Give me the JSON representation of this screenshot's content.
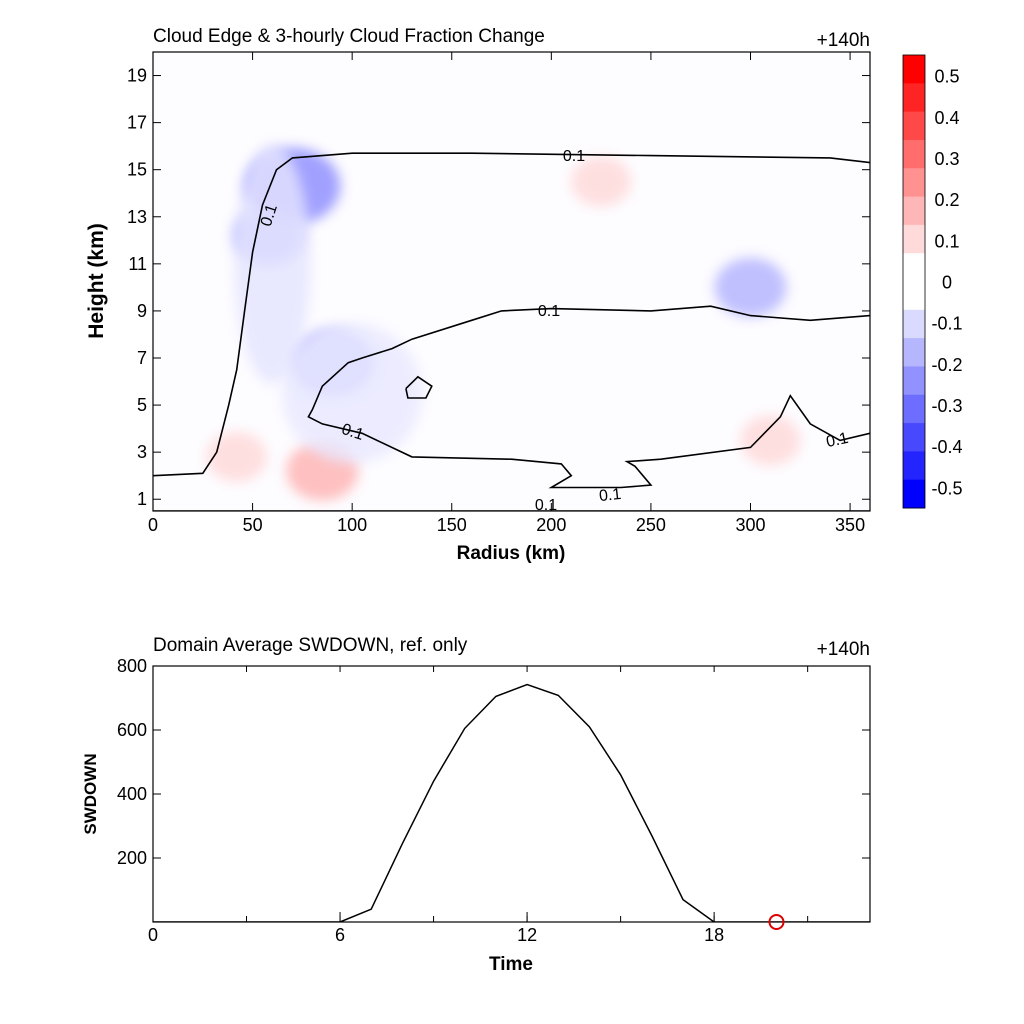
{
  "chart_data": [
    {
      "type": "heatmap",
      "title": "Cloud Edge & 3-hourly Cloud Fraction Change",
      "annotation": "+140h",
      "xlabel": "Radius (km)",
      "ylabel": "Height (km)",
      "xlim": [
        0,
        360
      ],
      "ylim": [
        0.5,
        20
      ],
      "xticks": [
        "0",
        "50",
        "100",
        "150",
        "200",
        "250",
        "300",
        "350"
      ],
      "yticks": [
        "1",
        "3",
        "5",
        "7",
        "9",
        "11",
        "13",
        "15",
        "17",
        "19"
      ],
      "colorbar": {
        "ticks": [
          "0.5",
          "0.4",
          "0.3",
          "0.2",
          "0.1",
          "0",
          "-0.1",
          "-0.2",
          "-0.3",
          "-0.4",
          "-0.5"
        ],
        "range": [
          -0.55,
          0.55
        ],
        "colors": [
          "#ff0000",
          "#ff2424",
          "#ff4848",
          "#ff6d6d",
          "#ff9191",
          "#ffb6b6",
          "#ffdada",
          "#ffffff",
          "#ffffff",
          "#dadaff",
          "#b6b6ff",
          "#9191ff",
          "#6d6dff",
          "#4848ff",
          "#2424ff",
          "#0000ff"
        ]
      },
      "contour_level": "0.1",
      "contour_labels": [
        "0.1",
        "0.1",
        "0.1",
        "0.1",
        "0.1",
        "0.1",
        "0.1"
      ],
      "features": [
        {
          "kind": "decrease",
          "x": 70,
          "y": 14.3,
          "value": -0.25
        },
        {
          "kind": "decrease",
          "x": 58,
          "y": 12.2,
          "value": -0.15
        },
        {
          "kind": "decrease",
          "x": 90,
          "y": 6.8,
          "value": -0.2
        },
        {
          "kind": "decrease",
          "x": 300,
          "y": 10.0,
          "value": -0.15
        },
        {
          "kind": "increase",
          "x": 225,
          "y": 14.5,
          "value": 0.1
        },
        {
          "kind": "increase",
          "x": 85,
          "y": 2.2,
          "value": 0.15
        },
        {
          "kind": "increase",
          "x": 42,
          "y": 2.8,
          "value": 0.1
        },
        {
          "kind": "increase",
          "x": 310,
          "y": 3.5,
          "value": 0.1
        }
      ],
      "cloud_edge_contours": [
        [
          [
            0,
            2.0
          ],
          [
            25,
            2.1
          ],
          [
            32,
            3.0
          ],
          [
            38,
            5.0
          ],
          [
            42,
            6.5
          ],
          [
            46,
            9.0
          ],
          [
            50,
            11.5
          ],
          [
            55,
            13.5
          ],
          [
            62,
            15.0
          ],
          [
            70,
            15.5
          ],
          [
            100,
            15.7
          ],
          [
            160,
            15.7
          ],
          [
            250,
            15.6
          ],
          [
            340,
            15.5
          ],
          [
            360,
            15.3
          ]
        ],
        [
          [
            0.1,
            0.5
          ],
          [
            360,
            0.5
          ]
        ],
        [
          [
            360,
            8.8
          ],
          [
            330,
            8.6
          ],
          [
            300,
            8.8
          ],
          [
            280,
            9.2
          ],
          [
            250,
            9.0
          ],
          [
            200,
            9.1
          ],
          [
            175,
            9.0
          ],
          [
            160,
            8.6
          ],
          [
            130,
            7.8
          ],
          [
            120,
            7.4
          ],
          [
            105,
            7.0
          ],
          [
            98,
            6.8
          ],
          [
            85,
            5.8
          ],
          [
            80,
            4.8
          ],
          [
            78,
            4.5
          ],
          [
            85,
            4.2
          ],
          [
            105,
            3.8
          ],
          [
            130,
            2.8
          ],
          [
            180,
            2.7
          ],
          [
            205,
            2.5
          ],
          [
            210,
            2.0
          ],
          [
            200,
            1.5
          ],
          [
            235,
            1.5
          ],
          [
            250,
            1.6
          ],
          [
            242,
            2.4
          ],
          [
            238,
            2.6
          ],
          [
            255,
            2.7
          ],
          [
            300,
            3.2
          ],
          [
            315,
            4.5
          ],
          [
            320,
            5.4
          ],
          [
            330,
            4.2
          ],
          [
            345,
            3.5
          ],
          [
            360,
            3.8
          ]
        ],
        [
          [
            127,
            5.7
          ],
          [
            133,
            6.2
          ],
          [
            140,
            5.8
          ],
          [
            137,
            5.3
          ],
          [
            128,
            5.3
          ],
          [
            127,
            5.7
          ]
        ]
      ]
    },
    {
      "type": "line",
      "title": "Domain Average SWDOWN, ref. only",
      "annotation": "+140h",
      "xlabel": "Time",
      "ylabel": "SWDOWN",
      "xlim": [
        0,
        23
      ],
      "ylim": [
        0,
        800
      ],
      "xticks": [
        "0",
        "6",
        "12",
        "18"
      ],
      "yticks": [
        "200",
        "400",
        "600",
        "800"
      ],
      "series": [
        {
          "x": [
            0,
            1,
            2,
            3,
            4,
            5,
            6,
            7,
            8,
            9,
            10,
            11,
            12,
            13,
            14,
            15,
            16,
            17,
            18,
            19,
            20,
            21,
            22,
            23
          ],
          "values": [
            0,
            0,
            0,
            0,
            0,
            0,
            0,
            40,
            245,
            440,
            605,
            705,
            742,
            708,
            610,
            460,
            270,
            70,
            0,
            0,
            0,
            0,
            0,
            0
          ]
        }
      ],
      "marker": {
        "x": 20,
        "y": 0,
        "shape": "open-circle",
        "color": "#dd0000"
      }
    }
  ]
}
